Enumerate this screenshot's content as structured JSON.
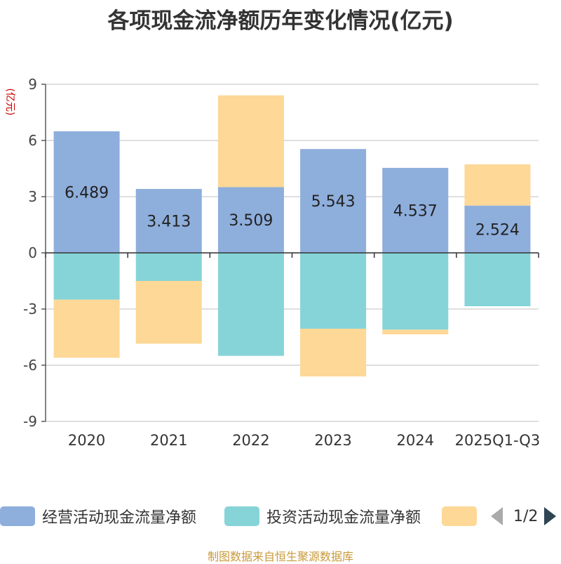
{
  "chart_data": {
    "type": "bar",
    "stacked": true,
    "title": "各项现金流净额历年变化情况(亿元)",
    "ylabel": "(亿元)",
    "ylim": [
      -9,
      9
    ],
    "yticks": [
      9,
      6,
      3,
      0,
      -3,
      -6,
      -9
    ],
    "categories": [
      "2020",
      "2021",
      "2022",
      "2023",
      "2024",
      "2025Q1-Q3"
    ],
    "series": [
      {
        "name": "经营活动现金流量净额",
        "color": "#8eaedc",
        "values": [
          6.489,
          3.413,
          3.509,
          5.543,
          4.537,
          2.524
        ]
      },
      {
        "name": "投资活动现金流量净额",
        "color": "#86d4d8",
        "values": [
          -2.5,
          -1.5,
          -5.5,
          -4.05,
          -4.1,
          -2.85
        ]
      },
      {
        "name": "",
        "color": "#fdd896",
        "values": [
          -3.1,
          -3.35,
          4.9,
          -2.55,
          -0.25,
          2.2
        ]
      }
    ],
    "data_labels": [
      "6.489",
      "3.413",
      "3.509",
      "5.543",
      "4.537",
      "2.524"
    ],
    "grid": true,
    "legend_position": "bottom"
  },
  "legend": {
    "items": [
      {
        "label": "经营活动现金流量净额",
        "color": "#8eaedc"
      },
      {
        "label": "投资活动现金流量净额",
        "color": "#86d4d8"
      },
      {
        "label": "",
        "color": "#fdd896"
      }
    ],
    "page_text": "1/2"
  },
  "source_note": "制图数据来自恒生聚源数据库"
}
